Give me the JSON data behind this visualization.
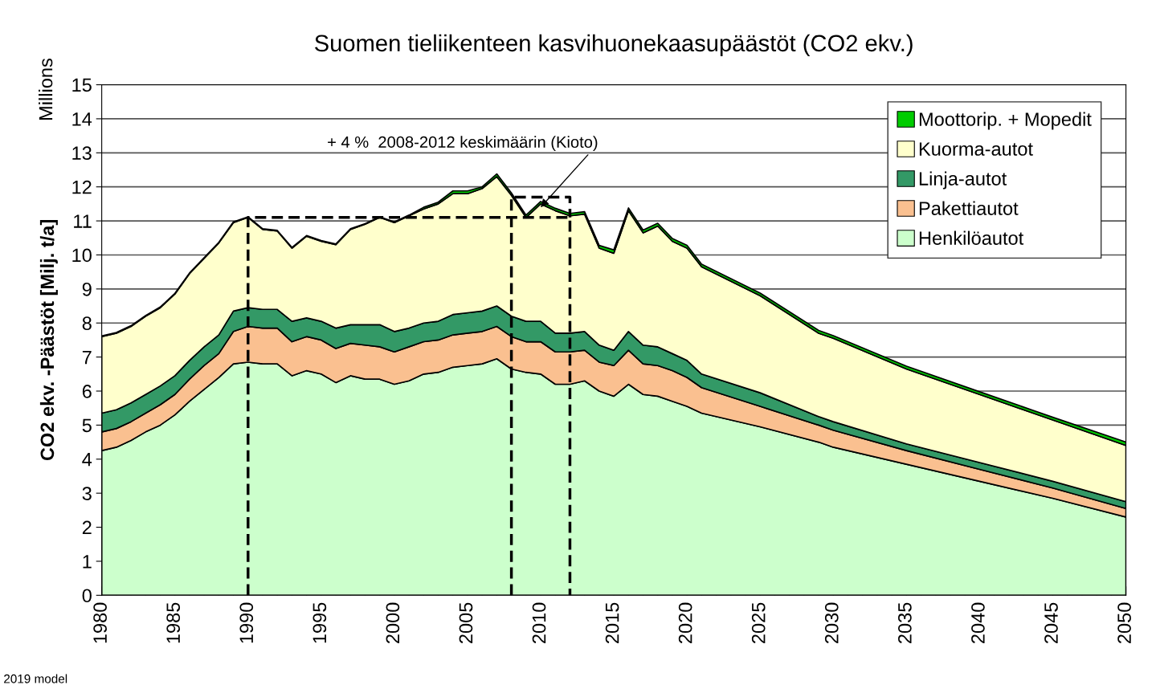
{
  "chart_data": {
    "type": "area",
    "stacked": true,
    "title": "Suomen tieliikenteen kasvihuonekaasupäästöt (CO2 ekv.)",
    "ylabel": "CO2 ekv. -Päästöt [Milj. t/a]",
    "x": [
      1980,
      1981,
      1982,
      1983,
      1984,
      1985,
      1986,
      1987,
      1988,
      1989,
      1990,
      1991,
      1992,
      1993,
      1994,
      1995,
      1996,
      1997,
      1998,
      1999,
      2000,
      2001,
      2002,
      2003,
      2004,
      2005,
      2006,
      2007,
      2008,
      2009,
      2010,
      2011,
      2012,
      2013,
      2014,
      2015,
      2016,
      2017,
      2018,
      2019,
      2020,
      2021,
      2025,
      2029,
      2030,
      2035,
      2040,
      2045,
      2050
    ],
    "xlim": [
      1980,
      2050
    ],
    "xticks": [
      1980,
      1985,
      1990,
      1995,
      2000,
      2005,
      2010,
      2015,
      2020,
      2025,
      2030,
      2035,
      2040,
      2045,
      2050
    ],
    "ylim": [
      0,
      15
    ],
    "yticks": [
      0,
      1,
      2,
      3,
      4,
      5,
      6,
      7,
      8,
      9,
      10,
      11,
      12,
      13,
      14,
      15
    ],
    "grid": "y",
    "legend": "top right",
    "series": [
      {
        "name": "Henkilöautot",
        "color": "#ccffcc",
        "values": [
          4.25,
          4.35,
          4.55,
          4.8,
          5.0,
          5.3,
          5.7,
          6.05,
          6.4,
          6.8,
          6.85,
          6.8,
          6.8,
          6.45,
          6.6,
          6.5,
          6.25,
          6.45,
          6.35,
          6.35,
          6.2,
          6.3,
          6.5,
          6.55,
          6.7,
          6.75,
          6.8,
          6.95,
          6.65,
          6.55,
          6.5,
          6.2,
          6.2,
          6.3,
          6.0,
          5.85,
          6.2,
          5.9,
          5.85,
          5.7,
          5.55,
          5.35,
          4.95,
          4.5,
          4.35,
          3.85,
          3.35,
          2.85,
          2.3
        ]
      },
      {
        "name": "Pakettiautot",
        "color": "#fac090",
        "values": [
          0.55,
          0.55,
          0.55,
          0.55,
          0.6,
          0.6,
          0.65,
          0.7,
          0.7,
          0.95,
          1.05,
          1.05,
          1.05,
          1.0,
          1.0,
          1.0,
          1.0,
          0.95,
          1.0,
          0.95,
          0.95,
          1.0,
          0.95,
          0.95,
          0.95,
          0.95,
          0.95,
          0.95,
          0.95,
          0.9,
          0.95,
          0.95,
          0.95,
          0.9,
          0.85,
          0.9,
          1.0,
          0.9,
          0.9,
          0.9,
          0.85,
          0.75,
          0.6,
          0.5,
          0.5,
          0.4,
          0.35,
          0.3,
          0.25
        ]
      },
      {
        "name": "Linja-autot",
        "color": "#339966",
        "values": [
          0.55,
          0.55,
          0.55,
          0.55,
          0.55,
          0.55,
          0.55,
          0.55,
          0.55,
          0.6,
          0.55,
          0.55,
          0.55,
          0.6,
          0.55,
          0.55,
          0.6,
          0.55,
          0.6,
          0.65,
          0.6,
          0.55,
          0.55,
          0.55,
          0.6,
          0.6,
          0.6,
          0.6,
          0.6,
          0.6,
          0.6,
          0.55,
          0.55,
          0.55,
          0.5,
          0.45,
          0.55,
          0.55,
          0.55,
          0.5,
          0.5,
          0.4,
          0.4,
          0.25,
          0.25,
          0.2,
          0.2,
          0.2,
          0.2
        ]
      },
      {
        "name": "Kuorma-autot",
        "color": "#ffffcc",
        "values": [
          2.25,
          2.25,
          2.25,
          2.3,
          2.3,
          2.4,
          2.55,
          2.6,
          2.7,
          2.6,
          2.65,
          2.35,
          2.3,
          2.15,
          2.4,
          2.35,
          2.45,
          2.8,
          2.95,
          3.15,
          3.2,
          3.3,
          3.35,
          3.45,
          3.55,
          3.5,
          3.6,
          3.8,
          3.55,
          3.05,
          3.45,
          3.6,
          3.45,
          3.45,
          2.85,
          2.85,
          3.55,
          3.3,
          3.55,
          3.3,
          3.3,
          3.15,
          2.85,
          2.45,
          2.45,
          2.2,
          2.0,
          1.8,
          1.65
        ]
      },
      {
        "name": "Moottorip. + Mopedit",
        "color": "#00cc00",
        "values": [
          0.02,
          0.02,
          0.02,
          0.02,
          0.02,
          0.02,
          0.02,
          0.02,
          0.02,
          0.02,
          0.02,
          0.02,
          0.02,
          0.02,
          0.02,
          0.02,
          0.02,
          0.02,
          0.02,
          0.02,
          0.02,
          0.02,
          0.05,
          0.05,
          0.08,
          0.08,
          0.05,
          0.08,
          0.07,
          0.07,
          0.07,
          0.07,
          0.07,
          0.07,
          0.08,
          0.1,
          0.08,
          0.08,
          0.08,
          0.08,
          0.08,
          0.08,
          0.08,
          0.08,
          0.08,
          0.08,
          0.08,
          0.08,
          0.1
        ]
      },
      {
        "type": "line",
        "line_style": "dashed",
        "color": "#000000",
        "x": [
          1990,
          1990,
          2012,
          2012
        ],
        "values": [
          0,
          11.1,
          11.1,
          0
        ]
      },
      {
        "type": "line",
        "line_style": "dashed",
        "color": "#000000",
        "x": [
          2008,
          2008,
          2012,
          2012
        ],
        "values": [
          0,
          11.7,
          11.7,
          11.1
        ]
      }
    ],
    "annotations": [
      "Millions",
      {
        "text": "+ 4 %  2008-2012 keskimäärin (Kioto)",
        "x": 2010,
        "y": 11.4
      },
      "2019 model"
    ]
  }
}
